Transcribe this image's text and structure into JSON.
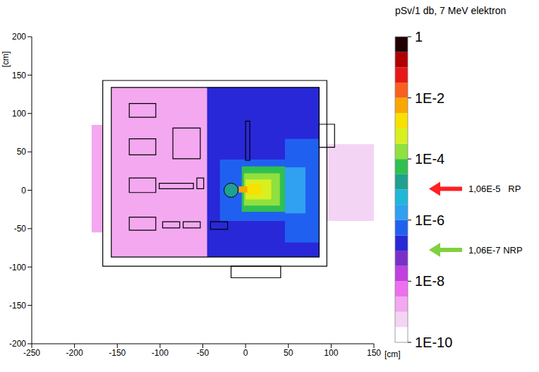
{
  "chart_data": {
    "type": "heatmap",
    "title": "pSv/1 db, 7 MeV elektron",
    "x_label": "[cm]",
    "y_label": "[cm]",
    "xlim": [
      -250,
      150
    ],
    "xticks": [
      -250,
      -200,
      -150,
      -100,
      -50,
      0,
      50,
      100,
      150
    ],
    "ylim": [
      -200,
      200
    ],
    "yticks": [
      -200,
      -150,
      -100,
      -50,
      0,
      50,
      100,
      150,
      200
    ],
    "cells": [
      {
        "x": [
          -180,
          -167
        ],
        "y": [
          -55,
          85
        ],
        "value": 3e-09
      },
      {
        "x": [
          95,
          150
        ],
        "y": [
          -40,
          60
        ],
        "value": 5e-10
      },
      {
        "x": [
          -157,
          86
        ],
        "y": [
          -87,
          134
        ],
        "value": 3e-09
      },
      {
        "x": [
          -45,
          86
        ],
        "y": [
          -87,
          134
        ],
        "value": 1.2e-07
      },
      {
        "x": [
          -30,
          86
        ],
        "y": [
          -40,
          40
        ],
        "value": 5e-07
      },
      {
        "x": [
          46,
          86
        ],
        "y": [
          -68,
          67
        ],
        "value": 6e-07
      },
      {
        "x": [
          46,
          70
        ],
        "y": [
          -30,
          30
        ],
        "value": 1.5e-06
      },
      {
        "x": [
          -4.5,
          46
        ],
        "y": [
          -28,
          31
        ],
        "value": 8e-05
      },
      {
        "x": [
          -2,
          40
        ],
        "y": [
          -20,
          22
        ],
        "value": 0.0002
      },
      {
        "x": [
          0,
          30
        ],
        "y": [
          -12,
          14
        ],
        "value": 0.0006
      },
      {
        "x": [
          2,
          18
        ],
        "y": [
          -6,
          8
        ],
        "value": 0.0015
      },
      {
        "x": [
          -8,
          2
        ],
        "y": [
          -3,
          5
        ],
        "value": 0.005
      }
    ],
    "target": {
      "x": -17,
      "y": 0,
      "value": 3e-05
    },
    "walls": [
      {
        "x": [
          -167,
          95
        ],
        "y": [
          -99,
          143
        ]
      },
      {
        "x": [
          -157,
          86
        ],
        "y": [
          -87,
          134
        ]
      },
      {
        "x": [
          86,
          104
        ],
        "y": [
          56,
          86
        ]
      },
      {
        "x": [
          -17,
          41
        ],
        "y": [
          -114,
          -99
        ]
      },
      {
        "x": [
          -136,
          -105
        ],
        "y": [
          95,
          113
        ]
      },
      {
        "x": [
          -136,
          -105
        ],
        "y": [
          46,
          67
        ]
      },
      {
        "x": [
          -85,
          -53
        ],
        "y": [
          41,
          81
        ]
      },
      {
        "x": [
          -136,
          -105
        ],
        "y": [
          -3,
          16
        ]
      },
      {
        "x": [
          -101,
          -61
        ],
        "y": [
          2,
          9
        ]
      },
      {
        "x": [
          -57,
          -49
        ],
        "y": [
          2,
          16
        ]
      },
      {
        "x": [
          -136,
          -105
        ],
        "y": [
          -52,
          -35
        ]
      },
      {
        "x": [
          -97,
          -77
        ],
        "y": [
          -49,
          -41
        ]
      },
      {
        "x": [
          -73,
          -53
        ],
        "y": [
          -49,
          -41
        ]
      },
      {
        "x": [
          -41,
          -21
        ],
        "y": [
          -51,
          -41
        ]
      },
      {
        "x": [
          0,
          5
        ],
        "y": [
          39,
          90
        ]
      }
    ],
    "colorbar": {
      "log": true,
      "range": [
        1e-10,
        1
      ],
      "ticks": [
        {
          "value": 1e-10,
          "label": "1E-10"
        },
        {
          "value": 1e-08,
          "label": "1E-8"
        },
        {
          "value": 1e-06,
          "label": "1E-6"
        },
        {
          "value": 0.0001,
          "label": "1E-4"
        },
        {
          "value": 0.01,
          "label": "1E-2"
        },
        1
      ],
      "colors": [
        "#ffffff",
        "#f4d4f4",
        "#f4a8f0",
        "#ee70ee",
        "#c040e0",
        "#7a30c8",
        "#2828d8",
        "#2060f0",
        "#30a0f0",
        "#20b8d8",
        "#20a090",
        "#30c050",
        "#90e040",
        "#d8f020",
        "#f8e000",
        "#f8a800",
        "#f86020",
        "#e81818",
        "#b00000",
        "#200000"
      ]
    },
    "annotations": [
      {
        "text": "1,06E-5   RP",
        "value": 1.06e-05,
        "color": "#ff2020"
      },
      {
        "text": "1,06E-7 NRP",
        "value": 1.06e-07,
        "color": "#80d040"
      }
    ]
  }
}
